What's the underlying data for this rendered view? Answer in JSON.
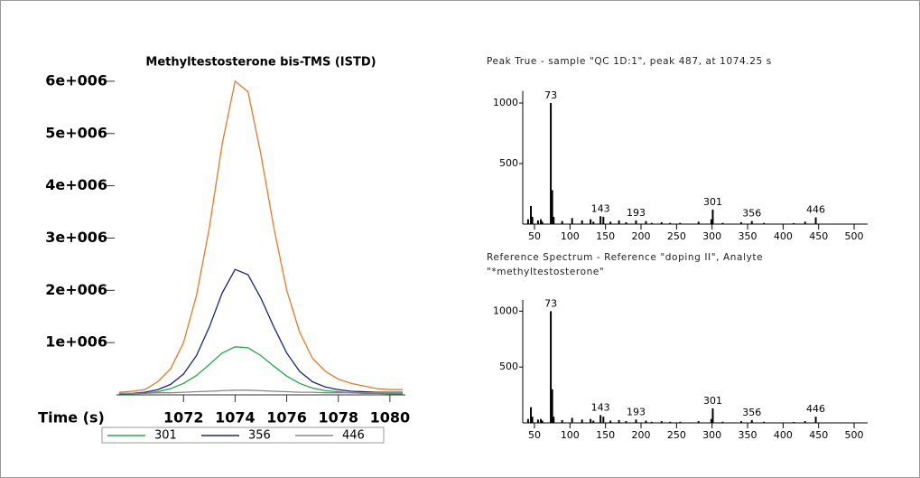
{
  "chart_data": [
    {
      "type": "line",
      "title": "Methyltestosterone bis-TMS (ISTD)",
      "x_label": "Time (s)",
      "x": [
        1069.5,
        1070,
        1070.5,
        1071,
        1071.5,
        1072,
        1072.5,
        1073,
        1073.5,
        1074,
        1074.5,
        1075,
        1075.5,
        1076,
        1076.5,
        1077,
        1077.5,
        1078,
        1078.5,
        1079,
        1079.5,
        1080,
        1080.5
      ],
      "series": [
        {
          "color": "#ee7722",
          "values": [
            50000.0,
            70000.0,
            100000.0,
            250000.0,
            500000.0,
            1000000.0,
            1900000.0,
            3200000.0,
            4800000.0,
            6000000.0,
            5800000.0,
            4600000.0,
            3200000.0,
            2000000.0,
            1200000.0,
            700000.0,
            450000.0,
            300000.0,
            220000.0,
            170000.0,
            120000.0,
            100000.0,
            100000.0
          ]
        },
        {
          "name": "301",
          "color": "#22aa44",
          "values": [
            10000.0,
            20000.0,
            30000.0,
            60000.0,
            120000.0,
            220000.0,
            370000.0,
            580000.0,
            800000.0,
            920000.0,
            900000.0,
            750000.0,
            550000.0,
            360000.0,
            220000.0,
            130000.0,
            80000.0,
            60000.0,
            40000.0,
            30000.0,
            30000.0,
            20000.0,
            20000.0
          ]
        },
        {
          "name": "356",
          "color": "#1a237e",
          "values": [
            20000.0,
            30000.0,
            50000.0,
            100000.0,
            200000.0,
            400000.0,
            750000.0,
            1300000.0,
            1950000.0,
            2400000.0,
            2300000.0,
            1850000.0,
            1300000.0,
            800000.0,
            450000.0,
            250000.0,
            150000.0,
            100000.0,
            70000.0,
            60000.0,
            50000.0,
            50000.0,
            50000.0
          ]
        },
        {
          "name": "446",
          "color": "#888888",
          "values": [
            30000.0,
            30000.0,
            30000.0,
            40000.0,
            40000.0,
            50000.0,
            60000.0,
            70000.0,
            80000.0,
            90000.0,
            90000.0,
            80000.0,
            70000.0,
            60000.0,
            50000.0,
            50000.0,
            40000.0,
            40000.0,
            40000.0,
            40000.0,
            40000.0,
            40000.0,
            40000.0
          ]
        }
      ],
      "xlim": [
        1069.4,
        1080.6
      ],
      "xticks": [
        1072,
        1074,
        1076,
        1078,
        1080
      ],
      "ylim": [
        0,
        6500000
      ],
      "yticks": [
        {
          "value": 1000000,
          "label": "1e+006"
        },
        {
          "value": 2000000,
          "label": "2e+006"
        },
        {
          "value": 3000000,
          "label": "3e+006"
        },
        {
          "value": 4000000,
          "label": "4e+006"
        },
        {
          "value": 5000000,
          "label": "5e+006"
        },
        {
          "value": 6000000,
          "label": "6e+006"
        }
      ]
    },
    {
      "type": "bar",
      "title": "Peak True - sample \"QC 1D:1\", peak 487, at 1074.25 s",
      "color": "#000000",
      "x": [
        41,
        45,
        47,
        55,
        59,
        61,
        73,
        75,
        77,
        89,
        103,
        117,
        129,
        133,
        143,
        147,
        157,
        169,
        179,
        193,
        207,
        215,
        229,
        241,
        255,
        281,
        299,
        301,
        315,
        341,
        356,
        373,
        415,
        431,
        446
      ],
      "values": [
        40,
        150,
        60,
        30,
        40,
        20,
        1000,
        280,
        60,
        25,
        50,
        30,
        40,
        20,
        65,
        60,
        20,
        30,
        15,
        30,
        25,
        10,
        15,
        10,
        10,
        20,
        40,
        120,
        10,
        15,
        25,
        10,
        8,
        20,
        55
      ],
      "labeled_peaks": [
        73,
        143,
        193,
        301,
        356,
        446
      ],
      "xlim": [
        33.5,
        519
      ],
      "xticks": [
        50,
        100,
        150,
        200,
        250,
        300,
        350,
        400,
        450,
        500
      ],
      "ylim": [
        0,
        1100
      ],
      "yticks": [
        500,
        1000
      ]
    },
    {
      "type": "bar",
      "title": "Reference Spectrum - Reference \"doping II\", Analyte \"*methyltestosterone\"",
      "color": "#000000",
      "x": [
        41,
        45,
        47,
        55,
        59,
        61,
        73,
        75,
        77,
        89,
        103,
        117,
        129,
        133,
        143,
        147,
        157,
        169,
        179,
        193,
        207,
        215,
        229,
        241,
        255,
        281,
        299,
        301,
        315,
        341,
        356,
        373,
        415,
        431,
        446
      ],
      "values": [
        35,
        140,
        55,
        30,
        35,
        20,
        1000,
        300,
        55,
        25,
        45,
        30,
        35,
        20,
        70,
        55,
        20,
        25,
        15,
        30,
        20,
        10,
        15,
        10,
        10,
        15,
        35,
        130,
        10,
        15,
        25,
        10,
        8,
        15,
        55
      ],
      "labeled_peaks": [
        73,
        143,
        193,
        301,
        356,
        446
      ],
      "xlim": [
        33.5,
        519
      ],
      "xticks": [
        50,
        100,
        150,
        200,
        250,
        300,
        350,
        400,
        450,
        500
      ],
      "ylim": [
        0,
        1100
      ],
      "yticks": [
        500,
        1000
      ]
    }
  ]
}
